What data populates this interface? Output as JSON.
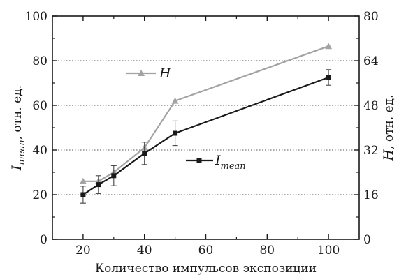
{
  "chart_data": {
    "type": "line",
    "xlabel": "Количество импульсов экспозиции",
    "ylabel_left": {
      "main": "I",
      "sub": "mean",
      "rest": ", отн. ед."
    },
    "ylabel_right": {
      "main": "H",
      "rest": ", отн. ед."
    },
    "x_ticks": [
      20,
      40,
      60,
      80,
      100
    ],
    "y_left_ticks": [
      0,
      20,
      40,
      60,
      80,
      100
    ],
    "y_right_ticks": [
      0,
      16,
      32,
      48,
      64,
      80
    ],
    "xlim": [
      10,
      110
    ],
    "ylim_left": [
      0,
      100
    ],
    "ylim_right": [
      0,
      80
    ],
    "grid": "horizontal dotted",
    "series": [
      {
        "name": "H",
        "legend": {
          "main": "H",
          "sub": ""
        },
        "axis": "right",
        "marker": "triangle",
        "color": "#a3a3a3",
        "x": [
          20,
          25,
          30,
          40,
          50,
          100
        ],
        "y": [
          20.8,
          20.8,
          24,
          32.8,
          49.6,
          69.2
        ],
        "err": []
      },
      {
        "name": "Imean",
        "legend": {
          "main": "I",
          "sub": "mean"
        },
        "axis": "left",
        "marker": "square",
        "color": "#1a1a1a",
        "x": [
          20,
          25,
          30,
          40,
          50,
          100
        ],
        "y": [
          20,
          24.5,
          28.5,
          38.5,
          47.5,
          72.5
        ],
        "err": [
          3.8,
          4,
          4.5,
          5,
          5.5,
          3.5
        ]
      }
    ]
  }
}
